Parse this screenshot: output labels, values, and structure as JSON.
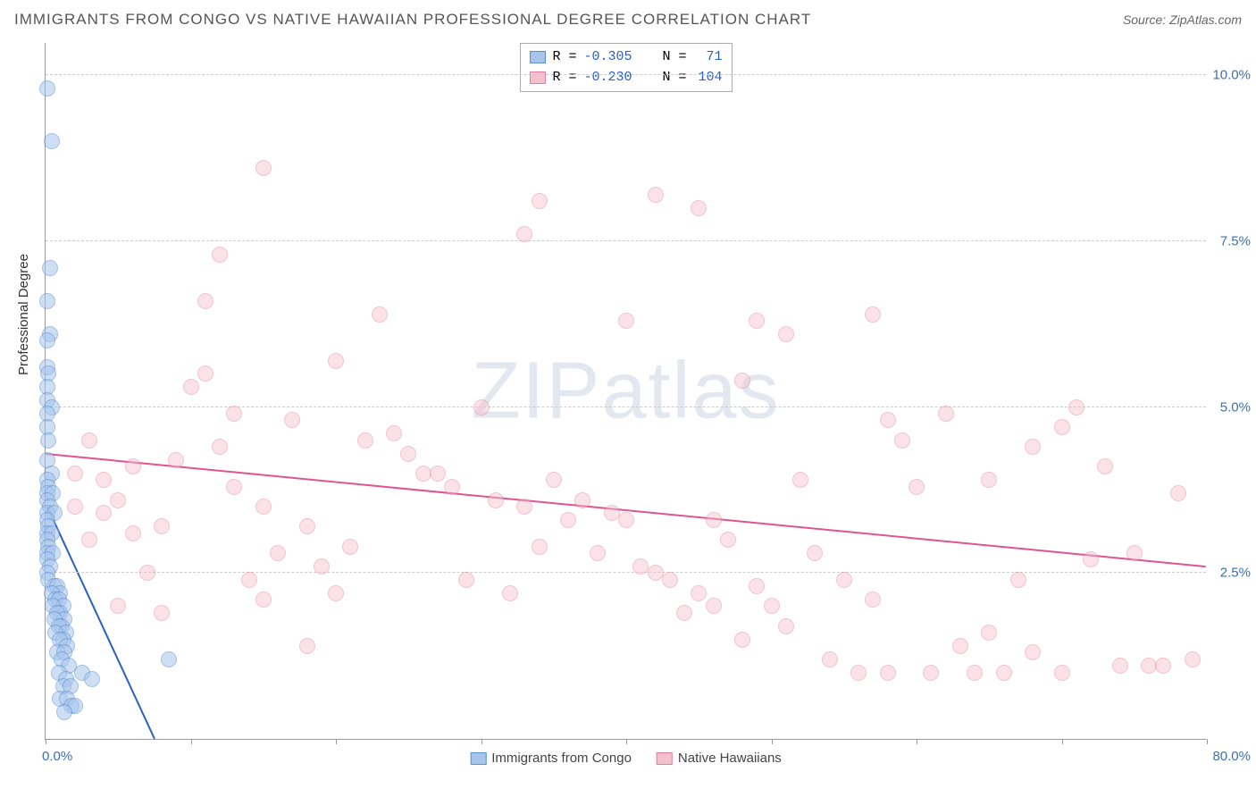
{
  "title": "IMMIGRANTS FROM CONGO VS NATIVE HAWAIIAN PROFESSIONAL DEGREE CORRELATION CHART",
  "source_label": "Source: ",
  "source_name": "ZipAtlas.com",
  "yaxis_label": "Professional Degree",
  "watermark_bold": "ZIP",
  "watermark_light": "atlas",
  "chart": {
    "type": "scatter",
    "xlim": [
      0,
      80
    ],
    "ylim": [
      0,
      10.5
    ],
    "xmin_label": "0.0%",
    "xmax_label": "80.0%",
    "ytick_values": [
      2.5,
      5.0,
      7.5,
      10.0
    ],
    "ytick_labels": [
      "2.5%",
      "5.0%",
      "7.5%",
      "10.0%"
    ],
    "xtick_values": [
      0,
      10,
      20,
      30,
      40,
      50,
      60,
      70,
      80
    ],
    "grid_color": "#cccccc",
    "background_color": "#ffffff",
    "point_radius": 9,
    "point_stroke_width": 1.5,
    "trend_line_width": 2,
    "series": [
      {
        "name": "Immigrants from Congo",
        "fill": "#a7c5ec",
        "stroke": "#5b8fd6",
        "fill_opacity": 0.55,
        "R": "-0.305",
        "N": "71",
        "trend_color": "#2b5fc7",
        "trend": {
          "x1": 0.1,
          "y1": 3.5,
          "x2": 7.5,
          "y2": 0.0
        },
        "points": [
          [
            0.1,
            9.8
          ],
          [
            0.4,
            9.0
          ],
          [
            0.3,
            7.1
          ],
          [
            0.1,
            6.6
          ],
          [
            0.3,
            6.1
          ],
          [
            0.1,
            6.0
          ],
          [
            0.1,
            5.6
          ],
          [
            0.2,
            5.5
          ],
          [
            0.1,
            5.3
          ],
          [
            0.1,
            5.1
          ],
          [
            0.4,
            5.0
          ],
          [
            0.1,
            4.9
          ],
          [
            0.1,
            4.7
          ],
          [
            0.2,
            4.5
          ],
          [
            0.1,
            4.2
          ],
          [
            0.4,
            4.0
          ],
          [
            0.1,
            3.9
          ],
          [
            0.2,
            3.8
          ],
          [
            0.1,
            3.7
          ],
          [
            0.5,
            3.7
          ],
          [
            0.1,
            3.6
          ],
          [
            0.3,
            3.5
          ],
          [
            0.1,
            3.4
          ],
          [
            0.6,
            3.4
          ],
          [
            0.1,
            3.3
          ],
          [
            0.2,
            3.2
          ],
          [
            0.1,
            3.1
          ],
          [
            0.4,
            3.1
          ],
          [
            0.1,
            3.0
          ],
          [
            0.2,
            2.9
          ],
          [
            0.1,
            2.8
          ],
          [
            0.5,
            2.8
          ],
          [
            0.1,
            2.7
          ],
          [
            0.3,
            2.6
          ],
          [
            0.1,
            2.5
          ],
          [
            0.2,
            2.4
          ],
          [
            0.6,
            2.3
          ],
          [
            0.8,
            2.3
          ],
          [
            1.0,
            2.2
          ],
          [
            0.4,
            2.2
          ],
          [
            0.7,
            2.1
          ],
          [
            0.9,
            2.1
          ],
          [
            1.2,
            2.0
          ],
          [
            0.5,
            2.0
          ],
          [
            1.0,
            1.9
          ],
          [
            0.8,
            1.9
          ],
          [
            1.3,
            1.8
          ],
          [
            0.6,
            1.8
          ],
          [
            1.1,
            1.7
          ],
          [
            0.9,
            1.7
          ],
          [
            1.4,
            1.6
          ],
          [
            0.7,
            1.6
          ],
          [
            1.2,
            1.5
          ],
          [
            1.0,
            1.5
          ],
          [
            1.5,
            1.4
          ],
          [
            0.8,
            1.3
          ],
          [
            1.3,
            1.3
          ],
          [
            1.1,
            1.2
          ],
          [
            1.6,
            1.1
          ],
          [
            0.9,
            1.0
          ],
          [
            2.5,
            1.0
          ],
          [
            1.4,
            0.9
          ],
          [
            3.2,
            0.9
          ],
          [
            1.2,
            0.8
          ],
          [
            1.7,
            0.8
          ],
          [
            1.0,
            0.6
          ],
          [
            1.5,
            0.6
          ],
          [
            1.8,
            0.5
          ],
          [
            2.0,
            0.5
          ],
          [
            1.3,
            0.4
          ],
          [
            8.5,
            1.2
          ]
        ]
      },
      {
        "name": "Native Hawaiians",
        "fill": "#f5c0ce",
        "stroke": "#e37ca0",
        "fill_opacity": 0.45,
        "R": "-0.230",
        "N": "104",
        "trend_color": "#e05590",
        "trend": {
          "x1": 0,
          "y1": 4.3,
          "x2": 80,
          "y2": 2.6
        },
        "points": [
          [
            15,
            8.6
          ],
          [
            34,
            8.1
          ],
          [
            42,
            8.2
          ],
          [
            45,
            8.0
          ],
          [
            33,
            7.6
          ],
          [
            12,
            7.3
          ],
          [
            11,
            6.6
          ],
          [
            23,
            6.4
          ],
          [
            40,
            6.3
          ],
          [
            49,
            6.3
          ],
          [
            51,
            6.1
          ],
          [
            57,
            6.4
          ],
          [
            10,
            5.3
          ],
          [
            13,
            4.9
          ],
          [
            17,
            4.8
          ],
          [
            20,
            5.7
          ],
          [
            22,
            4.5
          ],
          [
            24,
            4.6
          ],
          [
            25,
            4.3
          ],
          [
            26,
            4.0
          ],
          [
            27,
            4.0
          ],
          [
            28,
            3.8
          ],
          [
            30,
            5.0
          ],
          [
            31,
            3.6
          ],
          [
            33,
            3.5
          ],
          [
            35,
            3.9
          ],
          [
            36,
            3.3
          ],
          [
            37,
            3.6
          ],
          [
            38,
            2.8
          ],
          [
            40,
            3.3
          ],
          [
            41,
            2.6
          ],
          [
            42,
            2.5
          ],
          [
            43,
            2.4
          ],
          [
            44,
            1.9
          ],
          [
            45,
            2.2
          ],
          [
            46,
            2.0
          ],
          [
            47,
            3.0
          ],
          [
            48,
            1.5
          ],
          [
            49,
            2.3
          ],
          [
            50,
            2.0
          ],
          [
            51,
            1.7
          ],
          [
            52,
            3.9
          ],
          [
            53,
            2.8
          ],
          [
            54,
            1.2
          ],
          [
            55,
            2.4
          ],
          [
            56,
            1.0
          ],
          [
            57,
            2.1
          ],
          [
            58,
            1.0
          ],
          [
            59,
            4.5
          ],
          [
            60,
            3.8
          ],
          [
            61,
            1.0
          ],
          [
            62,
            4.9
          ],
          [
            63,
            1.4
          ],
          [
            64,
            1.0
          ],
          [
            65,
            3.9
          ],
          [
            66,
            1.0
          ],
          [
            67,
            2.4
          ],
          [
            68,
            4.4
          ],
          [
            70,
            1.0
          ],
          [
            71,
            5.0
          ],
          [
            72,
            2.7
          ],
          [
            73,
            4.1
          ],
          [
            74,
            1.1
          ],
          [
            75,
            2.8
          ],
          [
            76,
            1.1
          ],
          [
            77,
            1.1
          ],
          [
            78,
            3.7
          ],
          [
            79,
            1.2
          ],
          [
            4,
            3.9
          ],
          [
            4,
            3.4
          ],
          [
            5,
            3.6
          ],
          [
            5,
            2.0
          ],
          [
            6,
            4.1
          ],
          [
            6,
            3.1
          ],
          [
            7,
            2.5
          ],
          [
            8,
            3.2
          ],
          [
            8,
            1.9
          ],
          [
            9,
            4.2
          ],
          [
            14,
            2.4
          ],
          [
            15,
            2.1
          ],
          [
            16,
            2.8
          ],
          [
            18,
            3.2
          ],
          [
            19,
            2.6
          ],
          [
            20,
            2.2
          ],
          [
            21,
            2.9
          ],
          [
            29,
            2.4
          ],
          [
            32,
            2.2
          ],
          [
            34,
            2.9
          ],
          [
            39,
            3.4
          ],
          [
            2,
            4.0
          ],
          [
            2,
            3.5
          ],
          [
            3,
            3.0
          ],
          [
            3,
            4.5
          ],
          [
            11,
            5.5
          ],
          [
            13,
            3.8
          ],
          [
            46,
            3.3
          ],
          [
            48,
            5.4
          ],
          [
            15,
            3.5
          ],
          [
            18,
            1.4
          ],
          [
            12,
            4.4
          ],
          [
            58,
            4.8
          ],
          [
            65,
            1.6
          ],
          [
            70,
            4.7
          ],
          [
            68,
            1.3
          ]
        ]
      }
    ]
  },
  "stats_box": {
    "r_label": "R =",
    "n_label": "N ="
  }
}
